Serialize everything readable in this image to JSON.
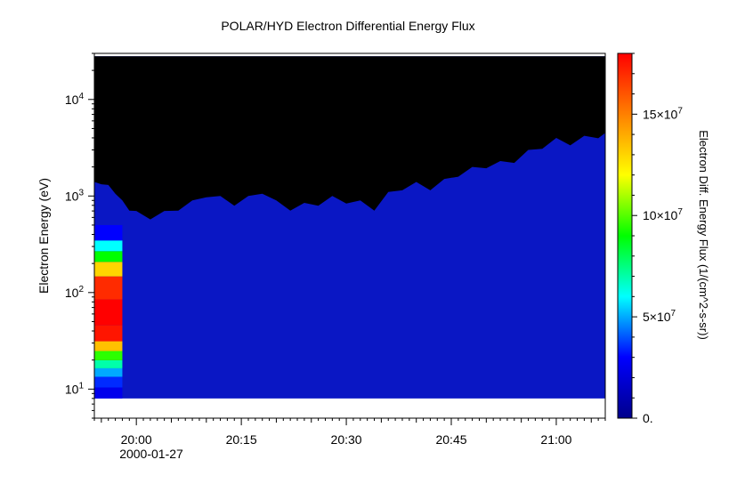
{
  "chart_data": {
    "type": "heatmap",
    "title": "POLAR/HYD  Electron Differential Energy Flux",
    "ylabel": "Electron Energy (eV)",
    "yscale": "log",
    "ylim": [
      5,
      30000
    ],
    "xlim": [
      "19:54",
      "21:07"
    ],
    "x_ticks": [
      {
        "t": "20:00",
        "label": "20:00"
      },
      {
        "t": "20:15",
        "label": "20:15"
      },
      {
        "t": "20:30",
        "label": "20:30"
      },
      {
        "t": "20:45",
        "label": "20:45"
      },
      {
        "t": "21:00",
        "label": "21:00"
      }
    ],
    "date_label": "2000-01-27",
    "y_ticks": [
      {
        "value": 10,
        "base": "10",
        "exp": "1"
      },
      {
        "value": 100,
        "base": "10",
        "exp": "2"
      },
      {
        "value": 1000,
        "base": "10",
        "exp": "3"
      },
      {
        "value": 10000,
        "base": "10",
        "exp": "4"
      }
    ],
    "data_energy_range_eV": [
      8,
      28000
    ],
    "colorbar": {
      "label": "Electron Diff. Energy Flux (1/(cm^2-s-sr))",
      "range": [
        0,
        180000000.0
      ],
      "colormap": [
        "#00008b",
        "#0000ff",
        "#00ffff",
        "#00ff00",
        "#ffff00",
        "#ff8000",
        "#ff0000"
      ],
      "ticks": [
        {
          "value": 0,
          "label": "0."
        },
        {
          "value": 50000000.0,
          "mantissa": "5",
          "exp": "7"
        },
        {
          "value": 100000000.0,
          "mantissa": "10",
          "exp": "7"
        },
        {
          "value": 150000000.0,
          "mantissa": "15",
          "exp": "7"
        }
      ]
    },
    "flux_scale": 10000000.0,
    "background_flux_color": "#0a17c4",
    "no_data_color": "#000000",
    "times": [
      "19:54",
      "19:55",
      "19:56",
      "19:57",
      "19:58",
      "19:59",
      "20:00",
      "20:02",
      "20:04",
      "20:06",
      "20:08",
      "20:10",
      "20:12",
      "20:14",
      "20:16",
      "20:18",
      "20:20",
      "20:22",
      "20:24",
      "20:26",
      "20:28",
      "20:30",
      "20:32",
      "20:34",
      "20:36",
      "20:38",
      "20:40",
      "20:42",
      "20:44",
      "20:46",
      "20:48",
      "20:50",
      "20:52",
      "20:54",
      "20:56",
      "20:58",
      "21:00",
      "21:02",
      "21:04",
      "21:06"
    ],
    "upper_flux_limit_eV": [
      1400,
      1500,
      1300,
      1200,
      900,
      800,
      700,
      650,
      700,
      800,
      900,
      1100,
      1000,
      900,
      1000,
      1200,
      900,
      800,
      850,
      900,
      1000,
      950,
      900,
      800,
      1100,
      1300,
      1400,
      1300,
      1500,
      1800,
      2000,
      2200,
      2300,
      2500,
      3000,
      3500,
      4000,
      3800,
      4200,
      4500
    ],
    "intense_burst": {
      "time_range": [
        "19:54",
        "19:58"
      ],
      "energy_range_eV": [
        8,
        500
      ],
      "bins": [
        {
          "energy_eV": 9,
          "flux_1e7": 2.5
        },
        {
          "energy_eV": 12,
          "flux_1e7": 3.5
        },
        {
          "energy_eV": 15,
          "flux_1e7": 5.0
        },
        {
          "energy_eV": 18,
          "flux_1e7": 7.0
        },
        {
          "energy_eV": 22,
          "flux_1e7": 9.5
        },
        {
          "energy_eV": 28,
          "flux_1e7": 13.5
        },
        {
          "energy_eV": 35,
          "flux_1e7": 17.5
        },
        {
          "energy_eV": 60,
          "flux_1e7": 18.0
        },
        {
          "energy_eV": 120,
          "flux_1e7": 17.0
        },
        {
          "energy_eV": 180,
          "flux_1e7": 13.0
        },
        {
          "energy_eV": 240,
          "flux_1e7": 9.0
        },
        {
          "energy_eV": 300,
          "flux_1e7": 6.0
        },
        {
          "energy_eV": 400,
          "flux_1e7": 3.0
        }
      ]
    }
  }
}
